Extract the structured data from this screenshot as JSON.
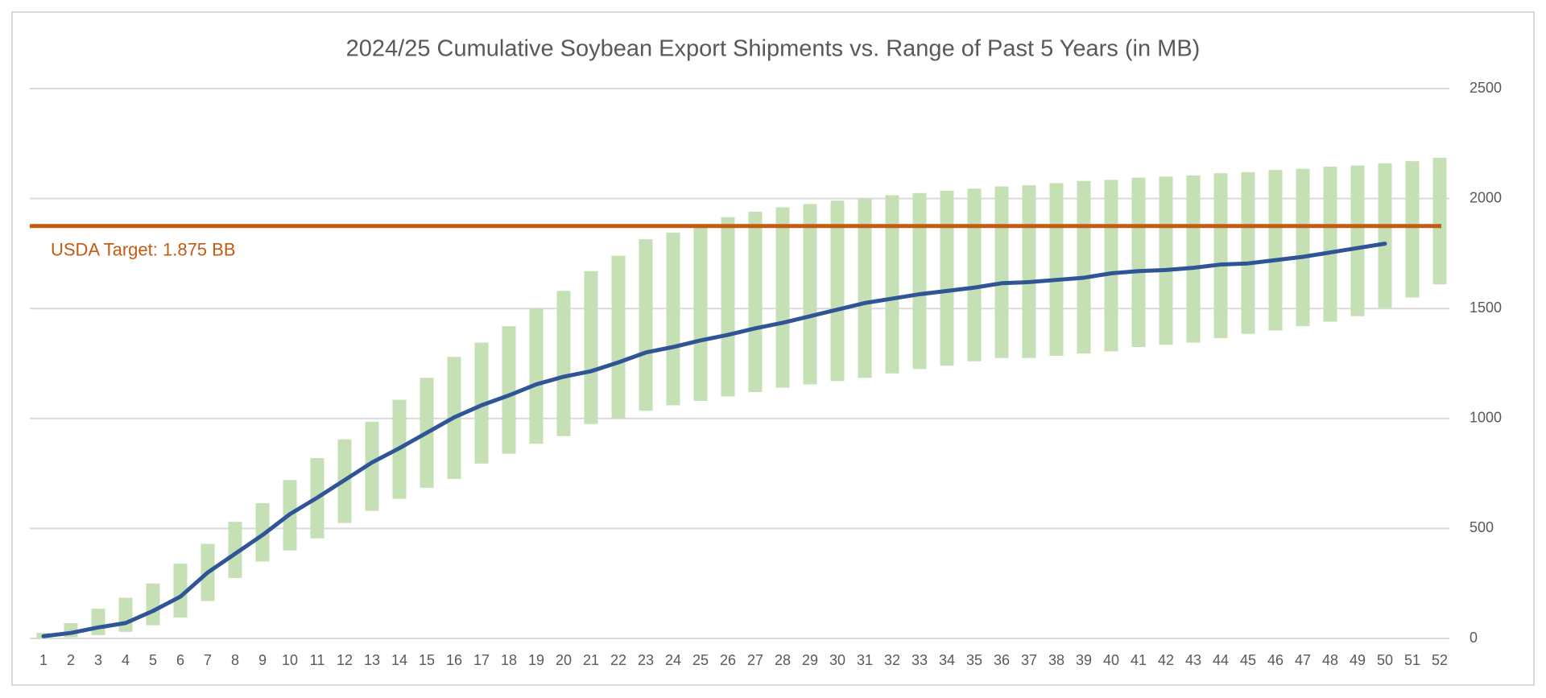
{
  "chart_data": {
    "type": "range_bar_line",
    "title": "2024/25 Cumulative Soybean Export Shipments vs. Range of Past 5 Years (in MB)",
    "categories": [
      "1",
      "2",
      "3",
      "4",
      "5",
      "6",
      "7",
      "8",
      "9",
      "10",
      "11",
      "12",
      "13",
      "14",
      "15",
      "16",
      "17",
      "18",
      "19",
      "20",
      "21",
      "22",
      "23",
      "24",
      "25",
      "26",
      "27",
      "28",
      "29",
      "30",
      "31",
      "32",
      "33",
      "34",
      "35",
      "36",
      "37",
      "38",
      "39",
      "40",
      "41",
      "42",
      "43",
      "44",
      "45",
      "46",
      "47",
      "48",
      "49",
      "50",
      "51",
      "52"
    ],
    "bars": {
      "color": "#c5e0b4",
      "low": [
        0,
        5,
        15,
        30,
        60,
        95,
        170,
        275,
        350,
        400,
        455,
        525,
        580,
        635,
        685,
        725,
        795,
        840,
        885,
        920,
        975,
        1000,
        1035,
        1060,
        1080,
        1100,
        1120,
        1140,
        1155,
        1170,
        1185,
        1205,
        1225,
        1240,
        1260,
        1275,
        1275,
        1285,
        1295,
        1305,
        1325,
        1335,
        1345,
        1365,
        1385,
        1400,
        1420,
        1440,
        1465,
        1500,
        1550,
        1610
      ],
      "high": [
        25,
        70,
        135,
        185,
        250,
        340,
        430,
        530,
        615,
        720,
        820,
        905,
        985,
        1085,
        1185,
        1280,
        1345,
        1420,
        1500,
        1580,
        1670,
        1740,
        1815,
        1845,
        1880,
        1915,
        1940,
        1960,
        1975,
        1990,
        2000,
        2015,
        2025,
        2035,
        2045,
        2055,
        2060,
        2070,
        2080,
        2085,
        2095,
        2100,
        2105,
        2115,
        2120,
        2130,
        2135,
        2145,
        2150,
        2160,
        2170,
        2185
      ]
    },
    "line": {
      "color": "#2f5597",
      "values": [
        10,
        25,
        50,
        70,
        125,
        190,
        300,
        385,
        470,
        565,
        640,
        720,
        800,
        865,
        935,
        1005,
        1060,
        1105,
        1155,
        1190,
        1215,
        1255,
        1300,
        1325,
        1355,
        1380,
        1410,
        1435,
        1465,
        1495,
        1525,
        1545,
        1565,
        1580,
        1595,
        1615,
        1620,
        1630,
        1640,
        1660,
        1670,
        1675,
        1685,
        1700,
        1705,
        1720,
        1735,
        1755,
        1775,
        1795
      ]
    },
    "reference_line": {
      "value": 1875,
      "label": "USDA Target: 1.875 BB",
      "color": "#c55a11"
    },
    "ylim": [
      0,
      2500
    ],
    "yticks": [
      0,
      500,
      1000,
      1500,
      2000,
      2500
    ],
    "grid": true,
    "y_axis_side": "right"
  }
}
